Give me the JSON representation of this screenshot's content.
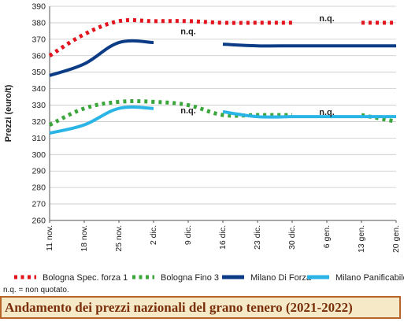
{
  "chart_data": {
    "type": "line",
    "title": "Andamento dei prezzi nazionali del grano tenero (2021-2022)",
    "ylabel": "Prezzi (euro/t)",
    "xlabel": "",
    "ylim": [
      260,
      390
    ],
    "yticks": [
      260,
      270,
      280,
      290,
      300,
      310,
      320,
      330,
      340,
      350,
      360,
      370,
      380,
      390
    ],
    "categories": [
      "11 nov.",
      "18 nov.",
      "25 nov.",
      "2 dic.",
      "9 dic.",
      "16 dic.",
      "23 dic.",
      "30 dic.",
      "6 gen.",
      "13 gen.",
      "20 gen."
    ],
    "grid": "horizontal",
    "legend_position": "bottom",
    "series": [
      {
        "name": "Bologna Spec. forza 1",
        "color": "#e3141e",
        "style": "dotted",
        "values": [
          360,
          373,
          381,
          381,
          381,
          380,
          380,
          380,
          null,
          380,
          380
        ]
      },
      {
        "name": "Bologna Fino 3",
        "color": "#3aa63c",
        "style": "dotted",
        "values": [
          318,
          328,
          332,
          332,
          330,
          324,
          324,
          324,
          null,
          324,
          320
        ]
      },
      {
        "name": "Milano Di Forza",
        "color": "#0b3c85",
        "style": "solid",
        "values": [
          348,
          355,
          368,
          368,
          null,
          367,
          366,
          366,
          366,
          366,
          366
        ]
      },
      {
        "name": "Milano Panificabile",
        "color": "#2bb5e6",
        "style": "solid",
        "values": [
          313,
          318,
          328,
          328,
          null,
          326,
          323,
          323,
          323,
          323,
          323
        ]
      }
    ],
    "annotations": [
      {
        "text": "n.q.",
        "x": "6 gen.",
        "y": 380
      },
      {
        "text": "n.q.",
        "x": "9 dic.",
        "y": 372
      },
      {
        "text": "n.q.",
        "x": "9 dic.",
        "y": 324
      },
      {
        "text": "n.q.",
        "x": "6 gen.",
        "y": 323
      }
    ]
  },
  "footnote": "n.q. = non quotato."
}
